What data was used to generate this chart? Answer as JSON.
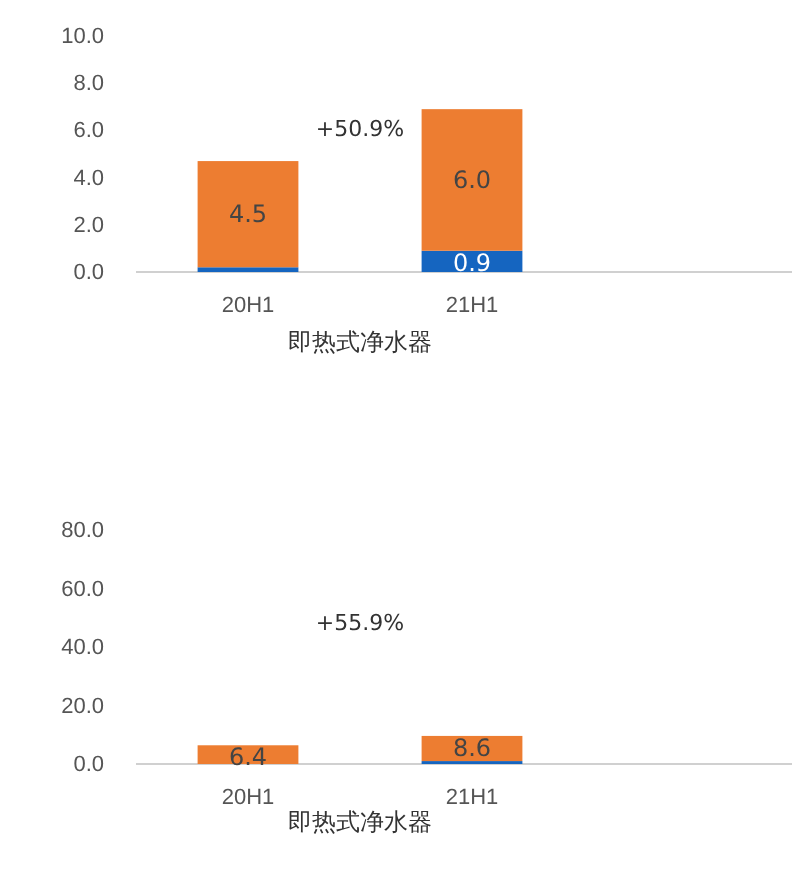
{
  "chart_data": [
    {
      "type": "bar",
      "stacked": true,
      "categories": [
        "20H1",
        "21H1"
      ],
      "xlabel": "即热式净水器",
      "ylim": [
        0,
        10
      ],
      "yticks": [
        {
          "value": 0,
          "label": "0.0"
        },
        {
          "value": 2,
          "label": "2.0"
        },
        {
          "value": 4,
          "label": "4.0"
        },
        {
          "value": 6,
          "label": "6.0"
        },
        {
          "value": 8,
          "label": "8.0"
        },
        {
          "value": 10,
          "label": "10.0"
        }
      ],
      "grid": false,
      "annotations": [
        "+50.9%"
      ],
      "series": [
        {
          "color": "#1565c0",
          "values": [
            0.2,
            0.9
          ],
          "value_labels": [
            null,
            "0.9"
          ]
        },
        {
          "color": "#ed7d31",
          "values": [
            4.5,
            6.0
          ],
          "value_labels": [
            "4.5",
            "6.0"
          ]
        }
      ]
    },
    {
      "type": "bar",
      "stacked": true,
      "categories": [
        "20H1",
        "21H1"
      ],
      "xlabel": "即热式净水器",
      "ylim": [
        0,
        80
      ],
      "yticks": [
        {
          "value": 0,
          "label": "0.0"
        },
        {
          "value": 20,
          "label": "20.0"
        },
        {
          "value": 40,
          "label": "40.0"
        },
        {
          "value": 60,
          "label": "60.0"
        },
        {
          "value": 80,
          "label": "80.0"
        }
      ],
      "grid": false,
      "annotations": [
        "+55.9%"
      ],
      "series": [
        {
          "color": "#1565c0",
          "values": [
            null,
            1.0
          ],
          "value_labels": [
            null,
            null
          ]
        },
        {
          "color": "#ed7d31",
          "values": [
            6.4,
            8.6
          ],
          "value_labels": [
            "6.4",
            "8.6"
          ]
        }
      ]
    }
  ]
}
